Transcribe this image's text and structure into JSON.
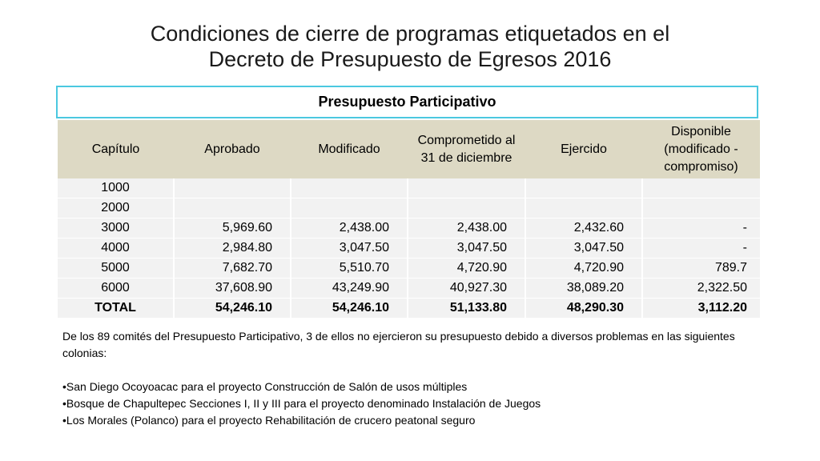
{
  "title": {
    "line1": "Condiciones de cierre de programas etiquetados en el",
    "line2": "Decreto de Presupuesto de Egresos 2016"
  },
  "table": {
    "caption": "Presupuesto Participativo",
    "columns": [
      "Capítulo",
      "Aprobado",
      "Modificado",
      "Comprometido al 31 de diciembre",
      "Ejercido",
      "Disponible (modificado - compromiso)"
    ],
    "rows": [
      [
        "1000",
        "",
        "",
        "",
        "",
        ""
      ],
      [
        "2000",
        "",
        "",
        "",
        "",
        ""
      ],
      [
        "3000",
        "5,969.60",
        "2,438.00",
        "2,438.00",
        "2,432.60",
        "-"
      ],
      [
        "4000",
        "2,984.80",
        "3,047.50",
        "3,047.50",
        "3,047.50",
        "-"
      ],
      [
        "5000",
        "7,682.70",
        "5,510.70",
        "4,720.90",
        "4,720.90",
        "789.7"
      ],
      [
        "6000",
        "37,608.90",
        "43,249.90",
        "40,927.30",
        "38,089.20",
        "2,322.50"
      ],
      [
        "TOTAL",
        "54,246.10",
        "54,246.10",
        "51,133.80",
        "48,290.30",
        "3,112.20"
      ]
    ]
  },
  "notes": {
    "intro": "De los 89 comités del Presupuesto Participativo, 3 de ellos no ejercieron su presupuesto debido a diversos problemas en las siguientes colonias:",
    "bullets": [
      "•San Diego Ocoyoacac para el proyecto Construcción de Salón de usos múltiples",
      "•Bosque de Chapultepec Secciones I, II y III para el proyecto denominado Instalación de Juegos",
      "•Los Morales (Polanco) para el proyecto Rehabilitación de crucero peatonal seguro"
    ]
  }
}
